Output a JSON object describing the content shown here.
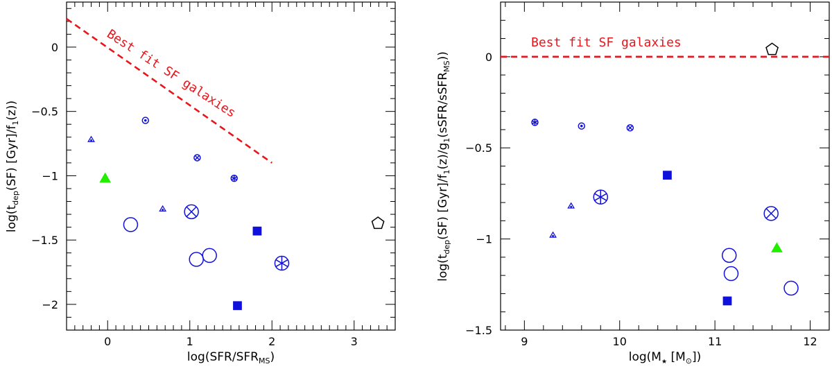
{
  "colors": {
    "blue": "#1010dd",
    "green": "#22ee00",
    "red": "#e8151b",
    "black": "#000000"
  },
  "chart_data": [
    {
      "type": "scatter",
      "title": "",
      "xlabel": {
        "main": "log(SFR/SFR",
        "sub": "MS",
        "close": ")"
      },
      "ylabel": {
        "p1": "log(t",
        "sub1": "dep",
        "p2": "(SF) [Gyr]/f",
        "sub2": "1",
        "p3": "(z))"
      },
      "xlim": [
        -0.5,
        3.5
      ],
      "ylim": [
        -2.2,
        0.35
      ],
      "xticks": [
        0,
        1,
        2,
        3
      ],
      "xtick_labels": [
        "0",
        "1",
        "2",
        "3"
      ],
      "yticks": [
        -2,
        -1.5,
        -1,
        -0.5,
        0
      ],
      "ytick_labels": [
        "−2",
        "−1.5",
        "−1",
        "−0.5",
        "0"
      ],
      "fit_line": {
        "label": "Best fit SF galaxies",
        "x": [
          -0.5,
          2.0
        ],
        "y": [
          0.22,
          -0.9
        ]
      },
      "points": [
        {
          "x": -0.2,
          "y": -0.72,
          "marker": "triangle-dot",
          "color": "blue",
          "size": "small"
        },
        {
          "x": -0.03,
          "y": -1.02,
          "marker": "triangle-filled",
          "color": "green",
          "size": "medium"
        },
        {
          "x": 0.46,
          "y": -0.57,
          "marker": "circle-dot",
          "color": "blue",
          "size": "small"
        },
        {
          "x": 0.28,
          "y": -1.38,
          "marker": "circle",
          "color": "blue",
          "size": "large"
        },
        {
          "x": 0.67,
          "y": -1.26,
          "marker": "triangle-dot",
          "color": "blue",
          "size": "small"
        },
        {
          "x": 1.09,
          "y": -0.86,
          "marker": "circle-cross",
          "color": "blue",
          "size": "small"
        },
        {
          "x": 1.02,
          "y": -1.28,
          "marker": "circle-cross",
          "color": "blue",
          "size": "large"
        },
        {
          "x": 1.54,
          "y": -1.02,
          "marker": "circle-asterisk",
          "color": "blue",
          "size": "small"
        },
        {
          "x": 1.08,
          "y": -1.65,
          "marker": "circle",
          "color": "blue",
          "size": "large"
        },
        {
          "x": 1.24,
          "y": -1.62,
          "marker": "circle",
          "color": "blue",
          "size": "large"
        },
        {
          "x": 1.82,
          "y": -1.43,
          "marker": "square-filled",
          "color": "blue",
          "size": "medium"
        },
        {
          "x": 2.12,
          "y": -1.68,
          "marker": "circle-asterisk",
          "color": "blue",
          "size": "large"
        },
        {
          "x": 1.58,
          "y": -2.01,
          "marker": "square-filled",
          "color": "blue",
          "size": "medium"
        },
        {
          "x": 3.29,
          "y": -1.37,
          "marker": "pentagon",
          "color": "black",
          "size": "medium"
        }
      ]
    },
    {
      "type": "scatter",
      "title": "",
      "xlabel": {
        "main": "log(M",
        "star": "★",
        "mid": " [M",
        "sun": "⊙",
        "close": "])"
      },
      "ylabel": {
        "p1": "log(t",
        "sub1": "dep",
        "p2": "(SF) [Gyr]/f",
        "sub2": "1",
        "p3": "(z)/g",
        "sub3": "1",
        "p4": "(sSFR/sSFR",
        "sub4": "MS",
        "p5": "))"
      },
      "xlim": [
        8.75,
        12.2
      ],
      "ylim": [
        -1.5,
        0.3
      ],
      "xticks": [
        9,
        10,
        11,
        12
      ],
      "xtick_labels": [
        "9",
        "10",
        "11",
        "12"
      ],
      "yticks": [
        -1.5,
        -1,
        -0.5,
        0
      ],
      "ytick_labels": [
        "−1.5",
        "−1",
        "−0.5",
        "0"
      ],
      "fit_line": {
        "label": "Best fit SF galaxies",
        "x": [
          8.75,
          12.2
        ],
        "y": [
          0,
          0
        ]
      },
      "points": [
        {
          "x": 9.11,
          "y": -0.36,
          "marker": "circle-asterisk",
          "color": "blue",
          "size": "small"
        },
        {
          "x": 9.6,
          "y": -0.38,
          "marker": "circle-dot",
          "color": "blue",
          "size": "small"
        },
        {
          "x": 10.11,
          "y": -0.39,
          "marker": "circle-cross",
          "color": "blue",
          "size": "small"
        },
        {
          "x": 9.49,
          "y": -0.82,
          "marker": "triangle-dot",
          "color": "blue",
          "size": "small"
        },
        {
          "x": 9.3,
          "y": -0.98,
          "marker": "triangle-dot",
          "color": "blue",
          "size": "small"
        },
        {
          "x": 9.8,
          "y": -0.77,
          "marker": "circle-asterisk",
          "color": "blue",
          "size": "large"
        },
        {
          "x": 10.5,
          "y": -0.65,
          "marker": "square-filled",
          "color": "blue",
          "size": "medium"
        },
        {
          "x": 11.59,
          "y": -0.86,
          "marker": "circle-cross",
          "color": "blue",
          "size": "large"
        },
        {
          "x": 11.65,
          "y": -1.05,
          "marker": "triangle-filled",
          "color": "green",
          "size": "medium"
        },
        {
          "x": 11.15,
          "y": -1.09,
          "marker": "circle",
          "color": "blue",
          "size": "large"
        },
        {
          "x": 11.17,
          "y": -1.19,
          "marker": "circle",
          "color": "blue",
          "size": "large"
        },
        {
          "x": 11.8,
          "y": -1.27,
          "marker": "circle",
          "color": "blue",
          "size": "large"
        },
        {
          "x": 11.13,
          "y": -1.34,
          "marker": "square-filled",
          "color": "blue",
          "size": "medium"
        },
        {
          "x": 11.6,
          "y": 0.04,
          "marker": "pentagon",
          "color": "black",
          "size": "medium"
        }
      ]
    }
  ]
}
